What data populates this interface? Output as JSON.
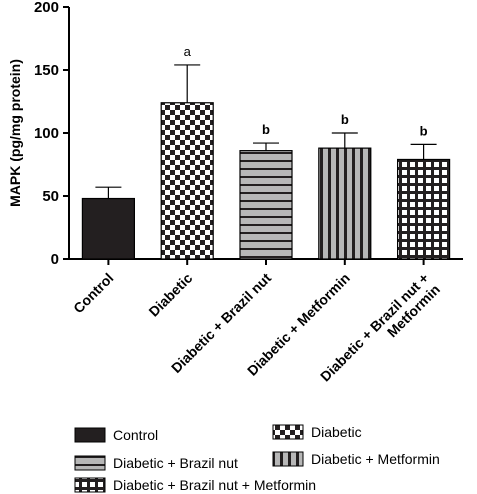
{
  "chart_data": {
    "type": "bar",
    "ylabel": "MAPK (pg/mg protein)",
    "xlabel": "",
    "ylim": [
      0,
      200
    ],
    "yticks": [
      0,
      50,
      100,
      150,
      200
    ],
    "categories": [
      "Control",
      "Diabetic",
      "Diabetic + Brazil nut",
      "Diabetic + Metformin",
      "Diabetic + Brazil nut + Metformin"
    ],
    "category_label_lines": [
      [
        "Control"
      ],
      [
        "Diabetic"
      ],
      [
        "Diabetic + Brazil nut"
      ],
      [
        "Diabetic + Metformin"
      ],
      [
        "Diabetic + Brazil nut +",
        "Metformin"
      ]
    ],
    "values": [
      48,
      124,
      86,
      88,
      79
    ],
    "error_upper": [
      57,
      154,
      92,
      100,
      91
    ],
    "annotations": [
      "",
      "a",
      "b",
      "b",
      "b"
    ],
    "fills": [
      "solid",
      "checker",
      "hstripes",
      "vstripes",
      "grid"
    ],
    "legend": {
      "items": [
        {
          "label": "Control",
          "fill": "solid"
        },
        {
          "label": "Diabetic",
          "fill": "checker"
        },
        {
          "label": "Diabetic + Brazil nut",
          "fill": "hstripes"
        },
        {
          "label": "Diabetic + Metformin",
          "fill": "vstripes"
        },
        {
          "label": "Diabetic + Brazil nut + Metformin",
          "fill": "grid"
        }
      ]
    },
    "colors": {
      "dark": "#231f20",
      "light": "#ffffff",
      "stripe_light": "#b7b7b7"
    }
  }
}
